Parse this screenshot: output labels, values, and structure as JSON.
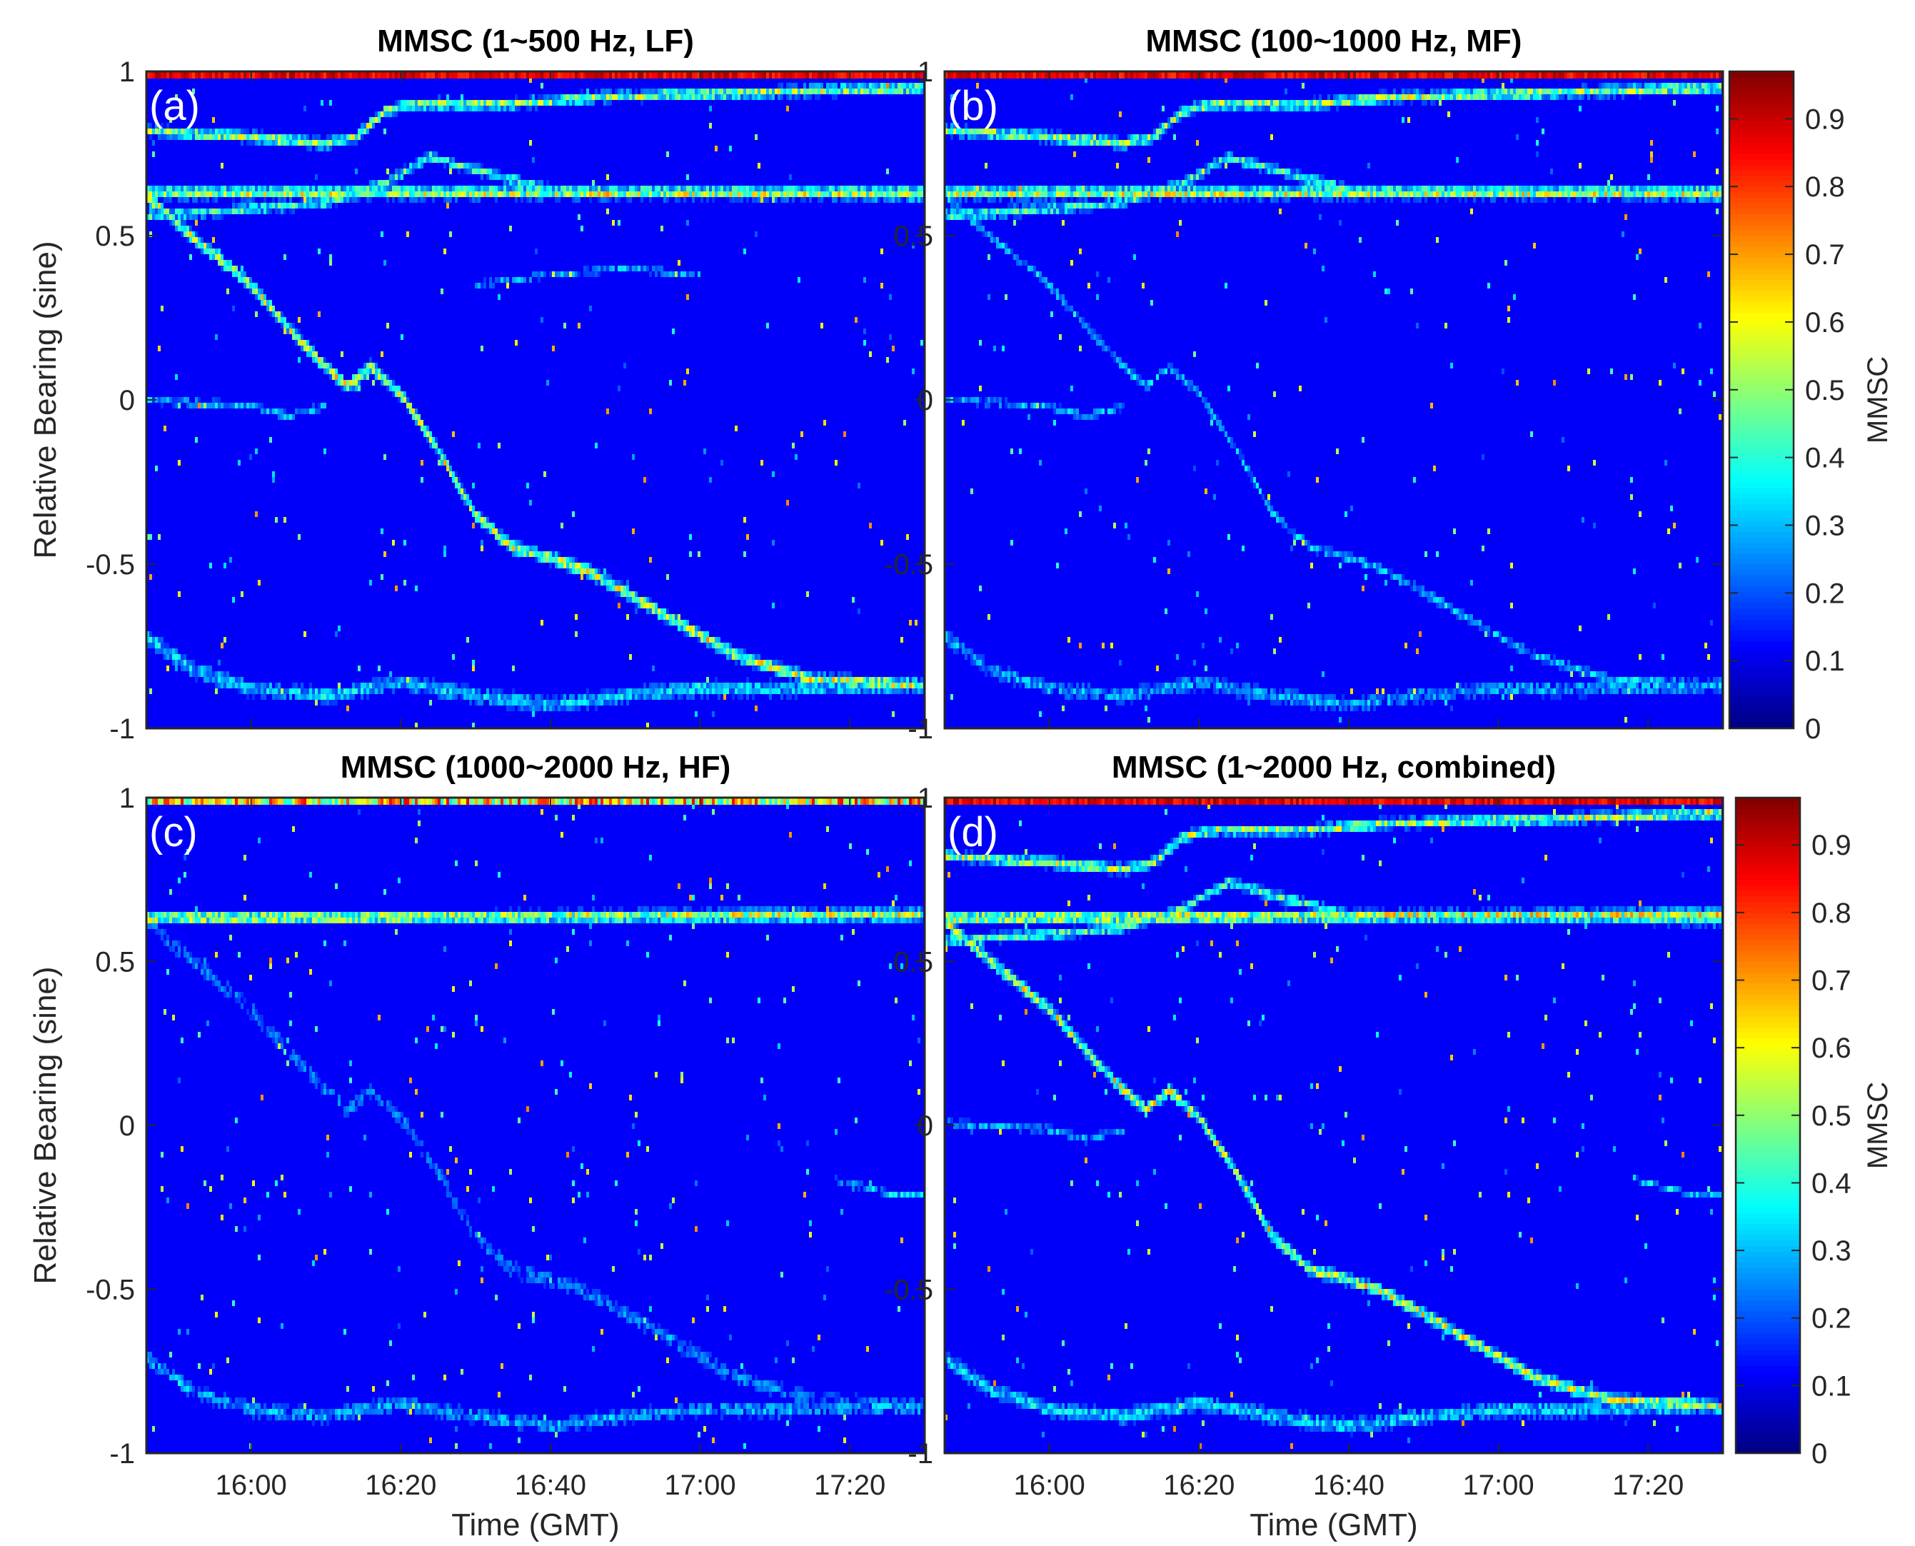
{
  "chart_data": [
    {
      "type": "heatmap",
      "panel_label": "(a)",
      "title": "MMSC (1~500 Hz, LF)",
      "xlabel": "",
      "ylabel": "Relative Bearing (sine)",
      "x_ticks": [
        "16:00",
        "16:20",
        "16:40",
        "17:00",
        "17:20"
      ],
      "x_tick_labels_shown": false,
      "y_ticks": [
        "-1",
        "-0.5",
        "0",
        "0.5",
        "1"
      ],
      "ylim": [
        -1,
        1
      ],
      "xlim_minutes_after_1600": [
        -14,
        90
      ],
      "colorbar": false,
      "tracks": [
        {
          "name": "track-top-upper",
          "width": 0.018,
          "intensity": 0.55,
          "points": [
            [
              -14,
              0.82
            ],
            [
              0,
              0.8
            ],
            [
              10,
              0.78
            ],
            [
              14,
              0.8
            ],
            [
              18,
              0.88
            ],
            [
              22,
              0.9
            ],
            [
              35,
              0.9
            ],
            [
              45,
              0.92
            ],
            [
              60,
              0.93
            ],
            [
              75,
              0.94
            ],
            [
              90,
              0.95
            ]
          ]
        },
        {
          "name": "track-upper-band",
          "width": 0.02,
          "intensity": 0.6,
          "points": [
            [
              -14,
              0.63
            ],
            [
              90,
              0.63
            ]
          ]
        },
        {
          "name": "track-mid-band",
          "width": 0.018,
          "intensity": 0.45,
          "points": [
            [
              -14,
              0.56
            ],
            [
              0,
              0.58
            ],
            [
              10,
              0.6
            ],
            [
              18,
              0.66
            ],
            [
              24,
              0.74
            ],
            [
              30,
              0.7
            ],
            [
              40,
              0.64
            ],
            [
              90,
              0.62
            ]
          ]
        },
        {
          "name": "track-diagonal",
          "width": 0.02,
          "intensity": 0.6,
          "points": [
            [
              -14,
              0.62
            ],
            [
              -8,
              0.5
            ],
            [
              0,
              0.35
            ],
            [
              5,
              0.22
            ],
            [
              10,
              0.1
            ],
            [
              13,
              0.04
            ],
            [
              16,
              0.1
            ],
            [
              20,
              0.02
            ],
            [
              25,
              -0.15
            ],
            [
              30,
              -0.35
            ],
            [
              35,
              -0.45
            ],
            [
              40,
              -0.48
            ],
            [
              45,
              -0.52
            ],
            [
              55,
              -0.65
            ],
            [
              65,
              -0.78
            ],
            [
              75,
              -0.85
            ],
            [
              90,
              -0.87
            ]
          ]
        },
        {
          "name": "track-flat-zero",
          "width": 0.016,
          "intensity": 0.32,
          "points": [
            [
              -14,
              0.0
            ],
            [
              0,
              -0.02
            ],
            [
              5,
              -0.05
            ],
            [
              10,
              -0.02
            ]
          ]
        },
        {
          "name": "track-weak-arc",
          "width": 0.014,
          "intensity": 0.3,
          "points": [
            [
              30,
              0.35
            ],
            [
              40,
              0.38
            ],
            [
              50,
              0.4
            ],
            [
              60,
              0.38
            ]
          ]
        },
        {
          "name": "track-bottom",
          "width": 0.03,
          "intensity": 0.35,
          "points": [
            [
              -14,
              -0.72
            ],
            [
              -8,
              -0.82
            ],
            [
              0,
              -0.88
            ],
            [
              10,
              -0.9
            ],
            [
              20,
              -0.86
            ],
            [
              30,
              -0.9
            ],
            [
              40,
              -0.93
            ],
            [
              50,
              -0.9
            ],
            [
              60,
              -0.88
            ],
            [
              70,
              -0.88
            ],
            [
              90,
              -0.87
            ]
          ]
        }
      ]
    },
    {
      "type": "heatmap",
      "panel_label": "(b)",
      "title": "MMSC (100~1000 Hz, MF)",
      "xlabel": "",
      "ylabel": "",
      "x_ticks": [
        "16:00",
        "16:20",
        "16:40",
        "17:00",
        "17:20"
      ],
      "x_tick_labels_shown": false,
      "y_ticks": [
        "-1",
        "-0.5",
        "0",
        "0.5",
        "1"
      ],
      "ylim": [
        -1,
        1
      ],
      "xlim_minutes_after_1600": [
        -14,
        90
      ],
      "colorbar": true,
      "colorbar_label": "MMSC",
      "colorbar_ticks": [
        "0",
        "0.1",
        "0.2",
        "0.3",
        "0.4",
        "0.5",
        "0.6",
        "0.7",
        "0.8",
        "0.9"
      ],
      "clim": [
        0,
        0.97
      ],
      "tracks": [
        {
          "name": "track-top-upper",
          "width": 0.018,
          "intensity": 0.55,
          "points": [
            [
              -14,
              0.82
            ],
            [
              0,
              0.8
            ],
            [
              10,
              0.78
            ],
            [
              14,
              0.8
            ],
            [
              18,
              0.88
            ],
            [
              22,
              0.9
            ],
            [
              35,
              0.9
            ],
            [
              45,
              0.92
            ],
            [
              60,
              0.93
            ],
            [
              75,
              0.94
            ],
            [
              90,
              0.95
            ]
          ]
        },
        {
          "name": "track-upper-band",
          "width": 0.02,
          "intensity": 0.6,
          "points": [
            [
              -14,
              0.63
            ],
            [
              90,
              0.63
            ]
          ]
        },
        {
          "name": "track-mid-band",
          "width": 0.018,
          "intensity": 0.45,
          "points": [
            [
              -14,
              0.56
            ],
            [
              0,
              0.58
            ],
            [
              10,
              0.6
            ],
            [
              18,
              0.66
            ],
            [
              24,
              0.74
            ],
            [
              30,
              0.7
            ],
            [
              40,
              0.64
            ],
            [
              90,
              0.62
            ]
          ]
        },
        {
          "name": "track-diagonal",
          "width": 0.018,
          "intensity": 0.33,
          "points": [
            [
              -14,
              0.62
            ],
            [
              -8,
              0.5
            ],
            [
              0,
              0.35
            ],
            [
              5,
              0.22
            ],
            [
              10,
              0.1
            ],
            [
              13,
              0.04
            ],
            [
              16,
              0.1
            ],
            [
              20,
              0.02
            ],
            [
              25,
              -0.15
            ],
            [
              30,
              -0.35
            ],
            [
              35,
              -0.45
            ],
            [
              40,
              -0.48
            ],
            [
              45,
              -0.52
            ],
            [
              55,
              -0.65
            ],
            [
              65,
              -0.78
            ],
            [
              75,
              -0.85
            ],
            [
              90,
              -0.87
            ]
          ]
        },
        {
          "name": "track-flat-zero",
          "width": 0.016,
          "intensity": 0.3,
          "points": [
            [
              -14,
              0.0
            ],
            [
              0,
              -0.02
            ],
            [
              5,
              -0.05
            ],
            [
              10,
              -0.02
            ]
          ]
        },
        {
          "name": "track-bottom",
          "width": 0.03,
          "intensity": 0.3,
          "points": [
            [
              -14,
              -0.72
            ],
            [
              -8,
              -0.82
            ],
            [
              0,
              -0.88
            ],
            [
              10,
              -0.9
            ],
            [
              20,
              -0.86
            ],
            [
              30,
              -0.9
            ],
            [
              40,
              -0.93
            ],
            [
              50,
              -0.9
            ],
            [
              60,
              -0.88
            ],
            [
              70,
              -0.88
            ],
            [
              90,
              -0.87
            ]
          ]
        }
      ]
    },
    {
      "type": "heatmap",
      "panel_label": "(c)",
      "title": "MMSC (1000~2000 Hz, HF)",
      "xlabel": "Time (GMT)",
      "ylabel": "Relative Bearing (sine)",
      "x_ticks": [
        "16:00",
        "16:20",
        "16:40",
        "17:00",
        "17:20"
      ],
      "x_tick_labels_shown": true,
      "y_ticks": [
        "-1",
        "-0.5",
        "0",
        "0.5",
        "1"
      ],
      "ylim": [
        -1,
        1
      ],
      "xlim_minutes_after_1600": [
        -14,
        90
      ],
      "colorbar": false,
      "tracks": [
        {
          "name": "track-upper-band",
          "width": 0.02,
          "intensity": 0.6,
          "points": [
            [
              -14,
              0.63
            ],
            [
              90,
              0.64
            ]
          ]
        },
        {
          "name": "track-diagonal",
          "width": 0.035,
          "intensity": 0.25,
          "points": [
            [
              -14,
              0.62
            ],
            [
              -8,
              0.5
            ],
            [
              0,
              0.35
            ],
            [
              5,
              0.22
            ],
            [
              10,
              0.1
            ],
            [
              13,
              0.04
            ],
            [
              16,
              0.1
            ],
            [
              20,
              0.02
            ],
            [
              25,
              -0.15
            ],
            [
              30,
              -0.35
            ],
            [
              35,
              -0.45
            ],
            [
              40,
              -0.48
            ],
            [
              45,
              -0.52
            ],
            [
              55,
              -0.65
            ],
            [
              65,
              -0.78
            ],
            [
              75,
              -0.85
            ],
            [
              90,
              -0.87
            ]
          ]
        },
        {
          "name": "track-short-segment",
          "width": 0.012,
          "intensity": 0.35,
          "points": [
            [
              78,
              -0.17
            ],
            [
              86,
              -0.22
            ],
            [
              90,
              -0.22
            ]
          ]
        },
        {
          "name": "track-bottom",
          "width": 0.03,
          "intensity": 0.3,
          "points": [
            [
              -14,
              -0.72
            ],
            [
              -8,
              -0.82
            ],
            [
              0,
              -0.88
            ],
            [
              10,
              -0.9
            ],
            [
              20,
              -0.86
            ],
            [
              30,
              -0.9
            ],
            [
              40,
              -0.93
            ],
            [
              50,
              -0.9
            ],
            [
              60,
              -0.88
            ],
            [
              70,
              -0.88
            ],
            [
              90,
              -0.87
            ]
          ]
        }
      ]
    },
    {
      "type": "heatmap",
      "panel_label": "(d)",
      "title": "MMSC (1~2000 Hz, combined)",
      "xlabel": "Time (GMT)",
      "ylabel": "",
      "x_ticks": [
        "16:00",
        "16:20",
        "16:40",
        "17:00",
        "17:20"
      ],
      "x_tick_labels_shown": true,
      "y_ticks": [
        "-1",
        "-0.5",
        "0",
        "0.5",
        "1"
      ],
      "ylim": [
        -1,
        1
      ],
      "xlim_minutes_after_1600": [
        -14,
        90
      ],
      "colorbar": true,
      "colorbar_label": "MMSC",
      "colorbar_ticks": [
        "0",
        "0.1",
        "0.2",
        "0.3",
        "0.4",
        "0.5",
        "0.6",
        "0.7",
        "0.8",
        "0.9"
      ],
      "clim": [
        0,
        0.97
      ],
      "tracks": [
        {
          "name": "track-top-upper",
          "width": 0.018,
          "intensity": 0.55,
          "points": [
            [
              -14,
              0.82
            ],
            [
              0,
              0.8
            ],
            [
              10,
              0.78
            ],
            [
              14,
              0.8
            ],
            [
              18,
              0.88
            ],
            [
              22,
              0.9
            ],
            [
              35,
              0.9
            ],
            [
              45,
              0.92
            ],
            [
              60,
              0.93
            ],
            [
              75,
              0.94
            ],
            [
              90,
              0.95
            ]
          ]
        },
        {
          "name": "track-upper-band",
          "width": 0.02,
          "intensity": 0.62,
          "points": [
            [
              -14,
              0.63
            ],
            [
              90,
              0.64
            ]
          ]
        },
        {
          "name": "track-mid-band",
          "width": 0.018,
          "intensity": 0.45,
          "points": [
            [
              -14,
              0.56
            ],
            [
              0,
              0.58
            ],
            [
              10,
              0.6
            ],
            [
              18,
              0.66
            ],
            [
              24,
              0.74
            ],
            [
              30,
              0.7
            ],
            [
              40,
              0.64
            ],
            [
              90,
              0.62
            ]
          ]
        },
        {
          "name": "track-diagonal",
          "width": 0.02,
          "intensity": 0.6,
          "points": [
            [
              -14,
              0.62
            ],
            [
              -8,
              0.5
            ],
            [
              0,
              0.35
            ],
            [
              5,
              0.22
            ],
            [
              10,
              0.1
            ],
            [
              13,
              0.04
            ],
            [
              16,
              0.1
            ],
            [
              20,
              0.02
            ],
            [
              25,
              -0.15
            ],
            [
              30,
              -0.35
            ],
            [
              35,
              -0.45
            ],
            [
              40,
              -0.48
            ],
            [
              45,
              -0.52
            ],
            [
              55,
              -0.65
            ],
            [
              65,
              -0.78
            ],
            [
              75,
              -0.85
            ],
            [
              90,
              -0.87
            ]
          ]
        },
        {
          "name": "track-flat-zero",
          "width": 0.016,
          "intensity": 0.3,
          "points": [
            [
              -14,
              0.0
            ],
            [
              0,
              -0.02
            ],
            [
              5,
              -0.05
            ],
            [
              10,
              -0.02
            ]
          ]
        },
        {
          "name": "track-short-segment",
          "width": 0.012,
          "intensity": 0.35,
          "points": [
            [
              78,
              -0.17
            ],
            [
              86,
              -0.22
            ],
            [
              90,
              -0.22
            ]
          ]
        },
        {
          "name": "track-bottom",
          "width": 0.03,
          "intensity": 0.35,
          "points": [
            [
              -14,
              -0.72
            ],
            [
              -8,
              -0.82
            ],
            [
              0,
              -0.88
            ],
            [
              10,
              -0.9
            ],
            [
              20,
              -0.86
            ],
            [
              30,
              -0.9
            ],
            [
              40,
              -0.93
            ],
            [
              50,
              -0.9
            ],
            [
              60,
              -0.88
            ],
            [
              70,
              -0.88
            ],
            [
              90,
              -0.87
            ]
          ]
        }
      ]
    }
  ]
}
